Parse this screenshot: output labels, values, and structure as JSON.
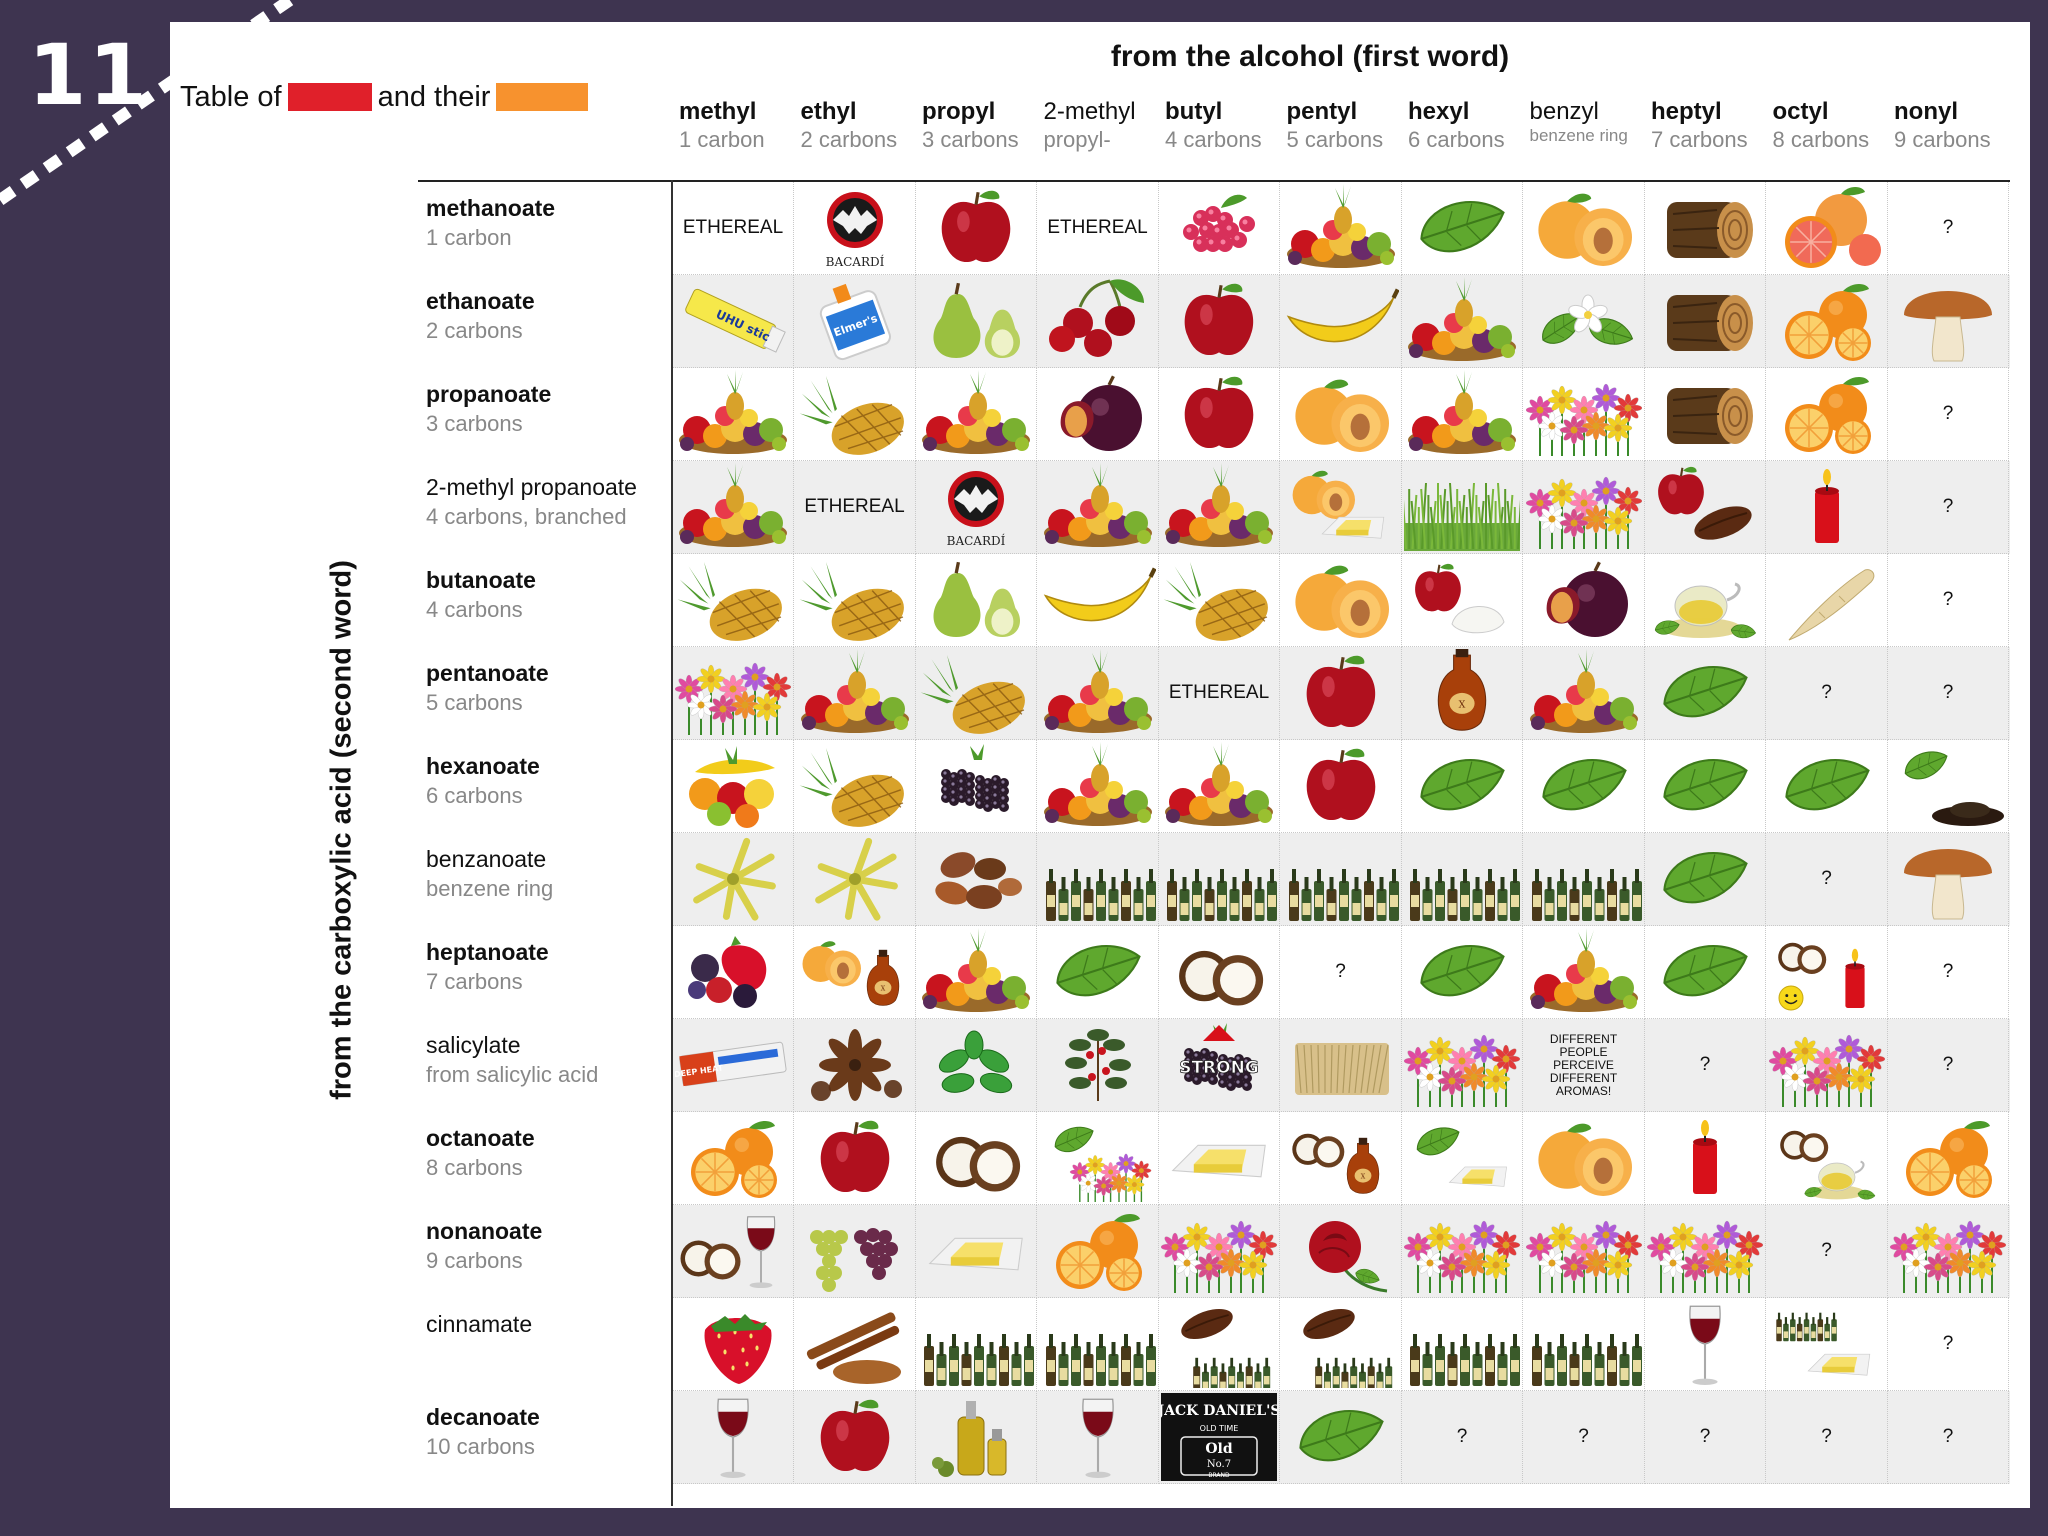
{
  "slide_number": "11",
  "legend": {
    "prefix": "Table of",
    "middle": "and their",
    "swatch1_color": "#e0202a",
    "swatch2_color": "#f7922e"
  },
  "top_axis_title": "from the alcohol (first word)",
  "side_axis_title": "from the carboxylic acid (second word)",
  "columns": [
    {
      "name": "methyl",
      "sub": "1 carbon",
      "bold": true
    },
    {
      "name": "ethyl",
      "sub": "2 carbons",
      "bold": true
    },
    {
      "name": "propyl",
      "sub": "3 carbons",
      "bold": true
    },
    {
      "name": "2-methyl",
      "sub": "propyl-",
      "bold": false
    },
    {
      "name": "butyl",
      "sub": "4 carbons",
      "bold": true
    },
    {
      "name": "pentyl",
      "sub": "5 carbons",
      "bold": true
    },
    {
      "name": "hexyl",
      "sub": "6 carbons",
      "bold": true
    },
    {
      "name": "benzyl",
      "sub": "benzene ring",
      "bold": false,
      "small": true
    },
    {
      "name": "heptyl",
      "sub": "7 carbons",
      "bold": true
    },
    {
      "name": "octyl",
      "sub": "8 carbons",
      "bold": true
    },
    {
      "name": "nonyl",
      "sub": "9 carbons",
      "bold": true
    }
  ],
  "rows": [
    {
      "name": "methanoate",
      "sub": "1 carbon",
      "bold": true,
      "cells": [
        "text:ETHEREAL",
        "bacardi",
        "apple",
        "text:ETHEREAL",
        "raspberry",
        "fruitmix",
        "leaf",
        "apricot",
        "log",
        "grapefruit",
        "q"
      ]
    },
    {
      "name": "ethanoate",
      "sub": "2 carbons",
      "bold": true,
      "cells": [
        "gluestick",
        "glue",
        "pear",
        "cherry",
        "apple",
        "banana",
        "fruitmix",
        "jasmine",
        "log",
        "orange",
        "mushroom"
      ]
    },
    {
      "name": "propanoate",
      "sub": "3 carbons",
      "bold": true,
      "cells": [
        "fruitmix",
        "pineapple",
        "fruitmix",
        "plum",
        "apple",
        "apricot",
        "fruitmix",
        "flowers",
        "log",
        "orange",
        "q"
      ]
    },
    {
      "name": "2-methyl propanoate",
      "sub": "4 carbons, branched",
      "bold": false,
      "cells": [
        "fruitmix",
        "text:ETHEREAL",
        "bacardi",
        "fruitmix",
        "fruitmix",
        "apricot-butter",
        "grass",
        "flowers",
        "apple-cocoa",
        "candle",
        "q"
      ]
    },
    {
      "name": "butanoate",
      "sub": "4 carbons",
      "bold": true,
      "cells": [
        "pineapple",
        "pineapple",
        "pear",
        "banana",
        "pineapple",
        "apricot",
        "apple-cheese",
        "plum",
        "tea",
        "parsnip",
        "q"
      ]
    },
    {
      "name": "pentanoate",
      "sub": "5 carbons",
      "bold": true,
      "cells": [
        "flowers",
        "fruitmix",
        "pineapple",
        "fruitmix",
        "text:ETHEREAL",
        "apple",
        "cognac",
        "fruitmix",
        "leaf",
        "q",
        "q"
      ]
    },
    {
      "name": "hexanoate",
      "sub": "6 carbons",
      "bold": true,
      "cells": [
        "fruitbowl",
        "pineapple",
        "blackberry",
        "fruitmix",
        "fruitmix",
        "apple",
        "leaf",
        "leaf",
        "leaf",
        "leaf",
        "leaf-soil"
      ]
    },
    {
      "name": "benzanoate",
      "sub": "benzene ring",
      "bold": false,
      "cells": [
        "ylang",
        "ylang",
        "nuts",
        "bottles",
        "bottles",
        "bottles",
        "bottles",
        "bottles",
        "leaf",
        "q",
        "mushroom"
      ]
    },
    {
      "name": "heptanoate",
      "sub": "7 carbons",
      "bold": true,
      "cells": [
        "berries",
        "apricot-cognac",
        "fruitmix",
        "leaf",
        "coconut",
        "q",
        "leaf",
        "fruitmix",
        "leaf",
        "coconut-smiley-candle",
        "q"
      ]
    },
    {
      "name": "salicylate",
      "sub": "from salicylic acid",
      "bold": false,
      "cells": [
        "deepheat",
        "anise",
        "mint",
        "wintergreen",
        "strong",
        "hay",
        "flowers",
        "dpp",
        "q",
        "flowers",
        "q"
      ]
    },
    {
      "name": "octanoate",
      "sub": "8 carbons",
      "bold": true,
      "cells": [
        "orange",
        "apple",
        "coconut",
        "leaf-flowers",
        "butter",
        "coconut-cognac",
        "leaf-butter",
        "apricot",
        "candle",
        "coconut-tea",
        "orange"
      ]
    },
    {
      "name": "nonanoate",
      "sub": "9 carbons",
      "bold": true,
      "cells": [
        "coconut-wine",
        "grapes",
        "butter",
        "orange",
        "flowers",
        "rose",
        "flowers",
        "flowers",
        "flowers",
        "q",
        "flowers"
      ]
    },
    {
      "name": "cinnamate",
      "sub": "",
      "bold": false,
      "cells": [
        "strawberry",
        "cinnamon",
        "bottles",
        "bottles",
        "cocoa-bottles",
        "cocoa-bottles",
        "bottles",
        "bottles",
        "wine",
        "bottles-butter",
        "q"
      ]
    },
    {
      "name": "decanoate",
      "sub": "10 carbons",
      "bold": true,
      "cells": [
        "wine",
        "apple",
        "oil",
        "wine",
        "jackdaniels",
        "leaf",
        "q",
        "q",
        "q",
        "q",
        "q"
      ]
    }
  ],
  "cell_text": {
    "q": "?",
    "dpp": [
      "DIFFERENT",
      "PEOPLE",
      "PERCEIVE",
      "DIFFERENT",
      "AROMAS!"
    ],
    "strong": "STRONG",
    "bacardi": "BACARDÍ",
    "jackdaniels_lines": [
      "JACK DANIEL'S",
      "OLD TIME",
      "Old",
      "No.7",
      "BRAND"
    ],
    "deepheat": "DEEP HEAT",
    "uhu": "UHU stic",
    "elmers": "Elmer's Glue"
  }
}
